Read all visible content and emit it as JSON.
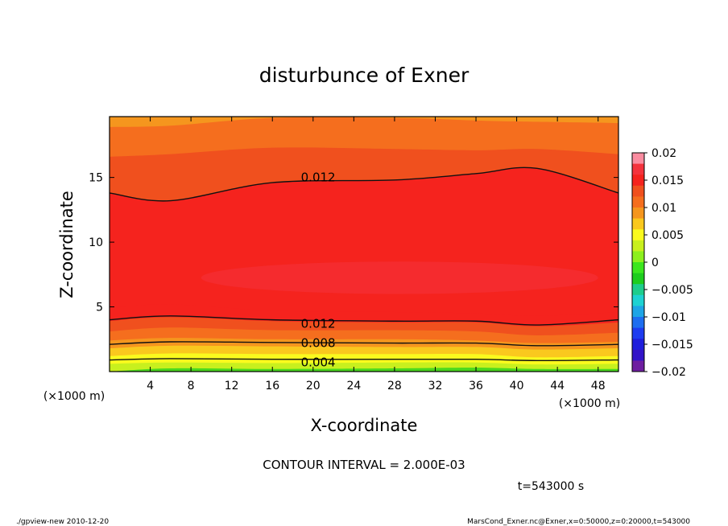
{
  "chart_data": {
    "type": "heatmap",
    "subtype": "filled-contour",
    "title": "disturbunce of Exner",
    "xlabel": "X-coordinate",
    "ylabel": "Z-coordinate",
    "x_unit": "(×1000 m)",
    "xlim": [
      0,
      50
    ],
    "ylim": [
      0,
      19.7
    ],
    "x_ticks": [
      4,
      8,
      12,
      16,
      20,
      24,
      28,
      32,
      36,
      40,
      44,
      48
    ],
    "y_ticks": [
      5,
      10,
      15
    ],
    "colorbar": {
      "ticks": [
        0.02,
        0.015,
        0.01,
        0.005,
        0,
        -0.005,
        -0.01,
        -0.015,
        -0.02
      ],
      "tick_labels": [
        "0.02",
        "0.015",
        "0.01",
        "0.005",
        "0",
        "−0.005",
        "−0.01",
        "−0.015",
        "−0.02"
      ],
      "colors": [
        "#fa8ca0",
        "#f4333d",
        "#f5231e",
        "#f0501e",
        "#f56e1e",
        "#f5961e",
        "#fac81e",
        "#fafa1e",
        "#c8f01e",
        "#8cf01e",
        "#3ce61e",
        "#1ecd1e",
        "#1ecd8c",
        "#1ed2d2",
        "#1ea5e6",
        "#1e6ef0",
        "#1e3cf0",
        "#1e1edc",
        "#3214c8",
        "#6e1ea0"
      ]
    },
    "contour_interval": "CONTOUR INTERVAL = 2.000E-03",
    "contour_labels": [
      {
        "text": "0.012",
        "x": 20.5,
        "z": 15.0
      },
      {
        "text": "0.012",
        "x": 20.5,
        "z": 3.7
      },
      {
        "text": "0.008",
        "x": 20.5,
        "z": 2.2
      },
      {
        "text": "0.004",
        "x": 20.5,
        "z": 0.7
      }
    ],
    "bands": [
      {
        "color": "#4ad81e",
        "z": [
          0,
          0.25,
          0.2,
          0.25,
          0.3,
          0.2,
          0.2
        ]
      },
      {
        "color": "#c8f01e",
        "z": [
          0.6,
          0.7,
          0.65,
          0.7,
          0.7,
          0.55,
          0.6
        ]
      },
      {
        "color": "#fafa1e",
        "z": [
          1.2,
          1.4,
          1.35,
          1.35,
          1.35,
          1.1,
          1.2
        ]
      },
      {
        "color": "#fac81e",
        "z": [
          1.8,
          2.0,
          1.95,
          1.9,
          1.9,
          1.7,
          1.8
        ]
      },
      {
        "color": "#f5961e",
        "z": [
          2.4,
          2.6,
          2.5,
          2.5,
          2.4,
          2.2,
          2.3
        ]
      },
      {
        "color": "#f56e1e",
        "z": [
          3.1,
          3.4,
          3.2,
          3.2,
          3.1,
          2.8,
          3.0
        ]
      },
      {
        "color": "#f0501e",
        "z": [
          3.9,
          4.2,
          3.9,
          3.8,
          3.8,
          3.5,
          3.8
        ]
      },
      {
        "color": "#f5231e",
        "z": [
          4.9,
          5.2,
          4.7,
          4.6,
          4.5,
          4.3,
          4.6
        ]
      }
    ],
    "upper_bands": [
      {
        "color": "#f5961e",
        "z": [
          18.9,
          19.0,
          19.6,
          19.6,
          19.4,
          19.3,
          19.2
        ]
      },
      {
        "color": "#f56e1e",
        "z": [
          16.6,
          16.8,
          17.3,
          17.2,
          17.1,
          17.2,
          16.8
        ]
      },
      {
        "color": "#f0501e",
        "z": [
          13.8,
          13.2,
          14.6,
          14.8,
          15.3,
          15.7,
          13.8
        ]
      }
    ],
    "x_profile": [
      0,
      6,
      16,
      28,
      36,
      42,
      50
    ],
    "core": {
      "color": "#f4333d",
      "x_range": [
        9,
        48
      ],
      "z_range": [
        6,
        8.5
      ]
    },
    "contour_lines": [
      {
        "label": "0.004",
        "z": [
          0.9,
          1.0,
          0.95,
          0.95,
          0.95,
          0.85,
          0.9
        ]
      },
      {
        "label": "0.008",
        "z": [
          2.1,
          2.3,
          2.25,
          2.2,
          2.2,
          2.0,
          2.1
        ]
      },
      {
        "label": "0.012",
        "z": [
          4.0,
          4.3,
          4.0,
          3.9,
          3.9,
          3.6,
          4.0
        ]
      },
      {
        "label": "0.012",
        "z": [
          13.8,
          13.2,
          14.6,
          14.8,
          15.3,
          15.7,
          13.8
        ]
      }
    ]
  },
  "time_label": "t=543000 s",
  "footer_left": "./gpview-new   2010-12-20",
  "footer_right": "MarsCond_Exner.nc@Exner,x=0:50000,z=0:20000,t=543000"
}
